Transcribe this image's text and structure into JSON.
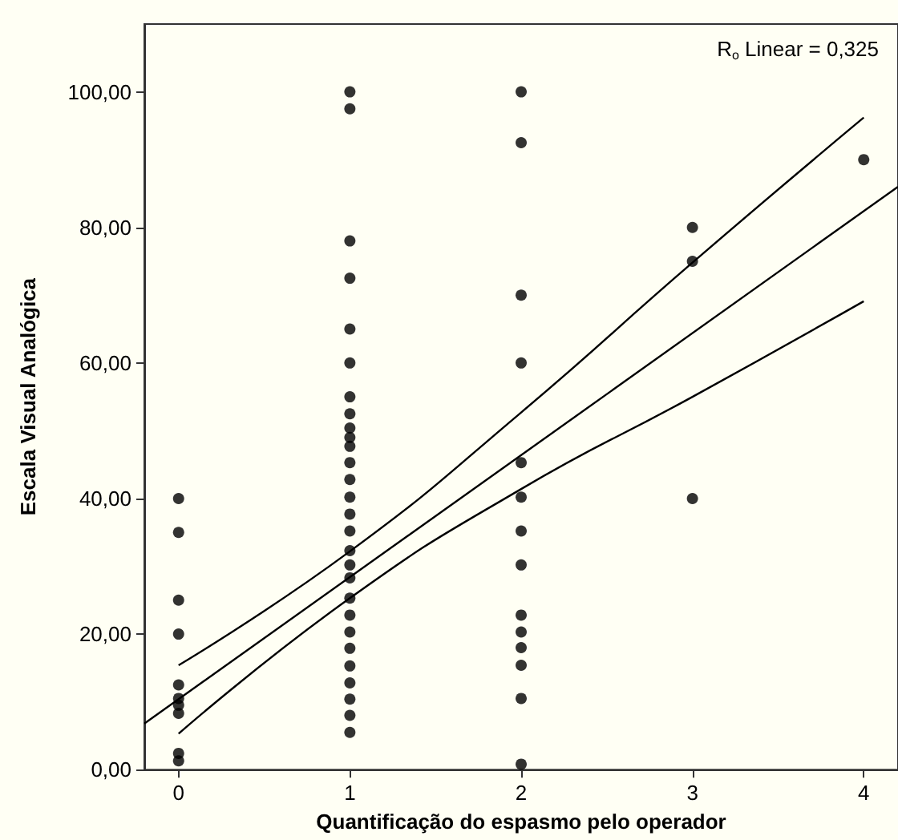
{
  "chart_data": {
    "type": "scatter",
    "xlabel": "Quantificação do espasmo pelo operador",
    "ylabel": "Escala Visual Analógica",
    "annotations": [
      "R$_{o}$ Linear = 0,325"
    ],
    "xlim": [
      -0.2,
      4.2
    ],
    "xticks": [
      0,
      1,
      2,
      3,
      4
    ],
    "ylim": [
      0,
      110
    ],
    "yticks": [
      {
        "value": 0,
        "label": "0,00"
      },
      {
        "value": 20,
        "label": "20,00"
      },
      {
        "value": 40,
        "label": "40,00"
      },
      {
        "value": 60,
        "label": "60,00"
      },
      {
        "value": 80,
        "label": "80,00"
      },
      {
        "value": 100,
        "label": "100,00"
      }
    ],
    "grid": false,
    "marker": "circle",
    "series": [
      {
        "color": "#000000",
        "x": [
          0,
          0,
          0,
          0,
          0,
          0,
          0,
          0,
          0,
          0,
          1,
          1,
          1,
          1,
          1,
          1,
          1,
          1,
          1,
          1,
          1,
          1,
          1,
          1,
          1,
          1,
          1,
          1,
          1,
          1,
          1,
          1,
          1,
          1,
          1,
          1,
          1,
          1,
          2,
          2,
          2,
          2,
          2,
          2,
          2,
          2,
          2,
          2,
          2,
          2,
          2,
          2,
          3,
          3,
          3,
          4
        ],
        "values": [
          40,
          35,
          25,
          20,
          12.5,
          10.5,
          9.5,
          8.3,
          2.4,
          1.3,
          100,
          97.5,
          78,
          72.5,
          65,
          60,
          55,
          52.5,
          50.4,
          49,
          47.7,
          45.3,
          42.8,
          40.2,
          37.7,
          35.2,
          32.3,
          30.2,
          28.3,
          25.3,
          22.8,
          20.3,
          17.9,
          15.3,
          12.8,
          10.4,
          8,
          5.5,
          100,
          92.5,
          70,
          60,
          45.3,
          40.2,
          35.2,
          30.2,
          22.8,
          20.3,
          18,
          15.4,
          10.5,
          0.8,
          80,
          75,
          40,
          90
        ]
      },
      {
        "type": "line",
        "color": "#000000",
        "marker": "none",
        "x": [
          -0.2,
          4.2
        ],
        "values": [
          6.8,
          86
        ]
      },
      {
        "type": "line",
        "color": "#000000",
        "marker": "none",
        "x": [
          0,
          1,
          2,
          3,
          4
        ],
        "values": [
          15.4,
          32.2,
          52.7,
          74.8,
          96.2
        ]
      },
      {
        "type": "line",
        "color": "#000000",
        "marker": "none",
        "x": [
          0,
          1,
          2,
          3,
          4
        ],
        "values": [
          5.3,
          25.3,
          41.4,
          55,
          69.1
        ]
      }
    ]
  }
}
